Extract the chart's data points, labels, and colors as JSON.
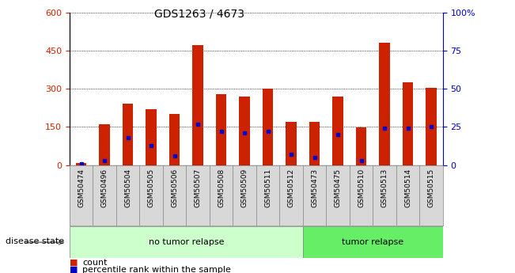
{
  "title": "GDS1263 / 4673",
  "samples": [
    "GSM50474",
    "GSM50496",
    "GSM50504",
    "GSM50505",
    "GSM50506",
    "GSM50507",
    "GSM50508",
    "GSM50509",
    "GSM50511",
    "GSM50512",
    "GSM50473",
    "GSM50475",
    "GSM50510",
    "GSM50513",
    "GSM50514",
    "GSM50515"
  ],
  "counts": [
    10,
    160,
    240,
    220,
    200,
    470,
    280,
    270,
    300,
    170,
    170,
    270,
    148,
    480,
    325,
    305
  ],
  "percentile_pct": [
    1,
    3,
    18,
    13,
    6,
    27,
    22,
    21,
    22,
    7,
    5,
    20,
    3,
    24,
    24,
    25
  ],
  "groups": [
    "no tumor relapse",
    "no tumor relapse",
    "no tumor relapse",
    "no tumor relapse",
    "no tumor relapse",
    "no tumor relapse",
    "no tumor relapse",
    "no tumor relapse",
    "no tumor relapse",
    "no tumor relapse",
    "tumor relapse",
    "tumor relapse",
    "tumor relapse",
    "tumor relapse",
    "tumor relapse",
    "tumor relapse"
  ],
  "group_colors": {
    "no tumor relapse": "#ccffcc",
    "tumor relapse": "#66ee66"
  },
  "bar_color": "#cc2200",
  "percentile_color": "#0000cc",
  "ylim_left": [
    0,
    600
  ],
  "ylim_right": [
    0,
    100
  ],
  "yticks_left": [
    0,
    150,
    300,
    450,
    600
  ],
  "yticks_right": [
    0,
    25,
    50,
    75,
    100
  ],
  "grid_color": "black",
  "bar_width": 0.45,
  "legend_count_label": "count",
  "legend_pct_label": "percentile rank within the sample",
  "disease_state_label": "disease state",
  "no_tumor_label": "no tumor relapse",
  "tumor_label": "tumor relapse"
}
